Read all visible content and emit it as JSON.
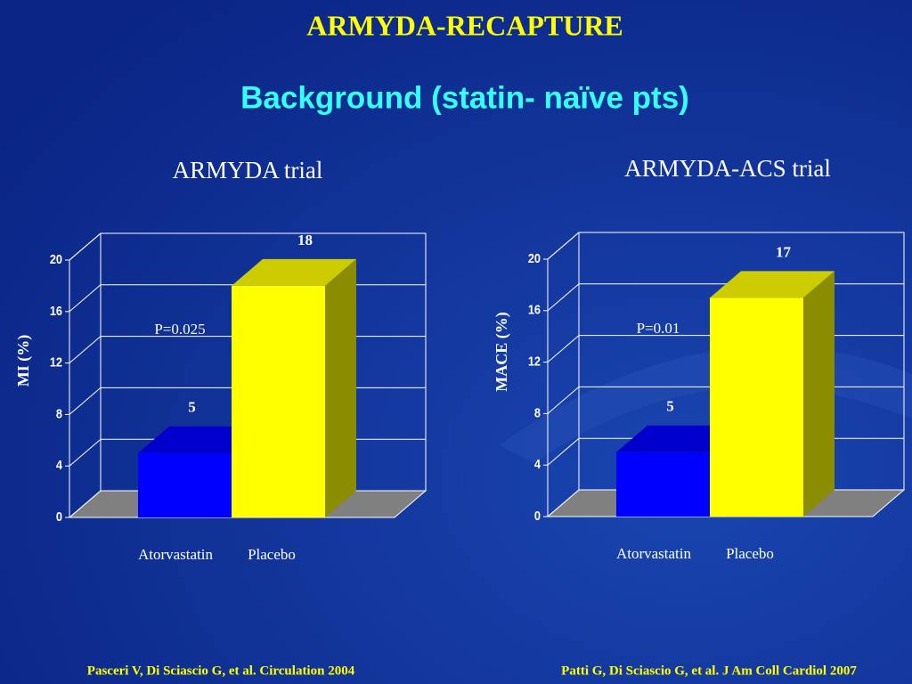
{
  "title": "ARMYDA-RECAPTURE",
  "subtitle": "Background (statin- naïve pts)",
  "footnotes": [
    "Pasceri V, Di Sciascio G, et al. Circulation 2004",
    "Patti G, Di Sciascio G, et al. J Am Coll Cardiol 2007"
  ],
  "chart_data": [
    {
      "type": "bar3d",
      "title": "ARMYDA trial",
      "y_label": "MI (%)",
      "annotation": "P=0.025",
      "categories": [
        "Atorvastatin",
        "Placebo"
      ],
      "values": [
        5,
        18
      ],
      "colors": [
        "#0000ff",
        "#ffff00"
      ],
      "ylim": [
        0,
        20
      ],
      "yticks": [
        0,
        4,
        8,
        12,
        16,
        20
      ],
      "grid": true
    },
    {
      "type": "bar3d",
      "title": "ARMYDA-ACS trial",
      "y_label": "MACE (%)",
      "annotation": "P=0.01",
      "categories": [
        "Atorvastatin",
        "Placebo"
      ],
      "values": [
        5,
        17
      ],
      "colors": [
        "#0000ff",
        "#ffff00"
      ],
      "ylim": [
        0,
        20
      ],
      "yticks": [
        0,
        4,
        8,
        12,
        16,
        20
      ],
      "grid": true
    }
  ]
}
